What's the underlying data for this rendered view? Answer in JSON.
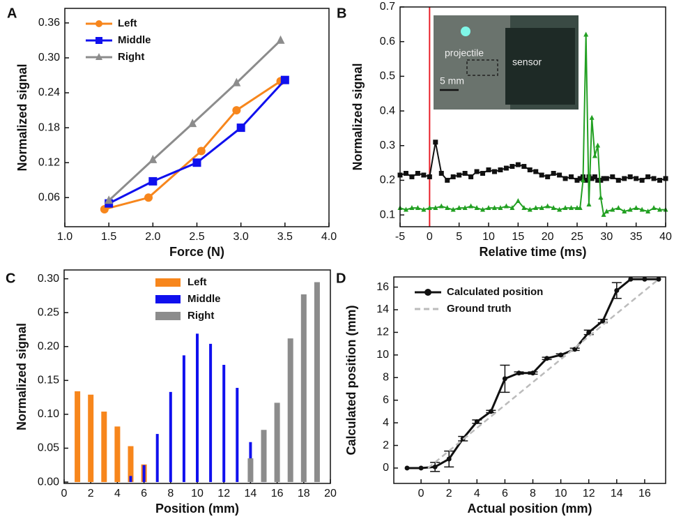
{
  "chart_data": [
    {
      "type": "line",
      "panel": "A",
      "xlabel": "Force (N)",
      "ylabel": "Normalized signal",
      "xlim": [
        1.0,
        4.0
      ],
      "xticks": [
        {
          "value": 1.0,
          "label": "1.0"
        },
        1.5,
        {
          "value": 2.0,
          "label": "2.0"
        },
        2.5,
        {
          "value": 3.0,
          "label": "3.0"
        },
        3.5,
        {
          "value": 4.0,
          "label": "4.0"
        }
      ],
      "ylim": [
        0.01,
        0.385
      ],
      "yticks": [
        0.06,
        0.12,
        0.18,
        0.24,
        {
          "value": 0.3,
          "label": "0.30"
        },
        0.36
      ],
      "legend": "upper left",
      "series": [
        {
          "name": "Left",
          "color": "#f7861c",
          "marker": "circle",
          "x": [
            1.45,
            1.95,
            2.55,
            2.95,
            3.45
          ],
          "values": [
            0.04,
            0.06,
            0.14,
            0.21,
            0.26
          ]
        },
        {
          "name": "Middle",
          "color": "#1010ee",
          "marker": "square",
          "x": [
            1.5,
            2.0,
            2.5,
            3.0,
            3.5
          ],
          "values": [
            0.05,
            0.088,
            0.12,
            0.18,
            0.262
          ]
        },
        {
          "name": "Right",
          "color": "#8c8c8c",
          "marker": "triangle",
          "x": [
            1.5,
            2.0,
            2.45,
            2.95,
            3.45
          ],
          "values": [
            0.055,
            0.125,
            0.187,
            0.257,
            0.33
          ]
        }
      ]
    },
    {
      "type": "line",
      "panel": "B",
      "xlabel": "Relative time (ms)",
      "ylabel": "Normalized signal",
      "xlim": [
        -5,
        40
      ],
      "xticks": [
        -5,
        0,
        5,
        10,
        15,
        20,
        25,
        30,
        35,
        40
      ],
      "ylim": [
        0.066,
        0.7
      ],
      "yticks": [
        0.1,
        0.2,
        0.3,
        0.4,
        0.5,
        0.6,
        0.7
      ],
      "vline": {
        "x": 0,
        "color": "#e8202a"
      },
      "inset_labels": [
        "projectile",
        "sensor",
        "5 mm"
      ],
      "x": [
        -5,
        -4,
        -3,
        -2,
        -1,
        0,
        1,
        2,
        3,
        4,
        5,
        6,
        7,
        8,
        9,
        10,
        11,
        12,
        13,
        14,
        15,
        16,
        17,
        18,
        19,
        20,
        21,
        22,
        23,
        24,
        25,
        25.5,
        26,
        26.5,
        27,
        27.5,
        28,
        28.5,
        29,
        29.5,
        30,
        31,
        32,
        33,
        34,
        35,
        36,
        37,
        38,
        39,
        40
      ],
      "series": [
        {
          "color": "#111111",
          "marker": "square",
          "values": [
            0.215,
            0.22,
            0.21,
            0.22,
            0.215,
            0.21,
            0.31,
            0.22,
            0.2,
            0.21,
            0.215,
            0.22,
            0.21,
            0.225,
            0.22,
            0.23,
            0.225,
            0.23,
            0.235,
            0.24,
            0.245,
            0.24,
            0.23,
            0.225,
            0.215,
            0.21,
            0.22,
            0.215,
            0.205,
            0.21,
            0.2,
            0.205,
            0.21,
            0.2,
            0.21,
            0.205,
            0.21,
            0.2,
            0.2,
            0.205,
            0.205,
            0.21,
            0.2,
            0.205,
            0.21,
            0.205,
            0.2,
            0.21,
            0.205,
            0.2,
            0.205
          ]
        },
        {
          "color": "#22a022",
          "marker": "triangle",
          "values": [
            0.12,
            0.115,
            0.12,
            0.12,
            0.115,
            0.12,
            0.12,
            0.125,
            0.12,
            0.115,
            0.12,
            0.12,
            0.125,
            0.12,
            0.115,
            0.12,
            0.12,
            0.12,
            0.125,
            0.12,
            0.14,
            0.12,
            0.115,
            0.12,
            0.12,
            0.125,
            0.12,
            0.115,
            0.12,
            0.12,
            0.12,
            0.12,
            0.2,
            0.62,
            0.13,
            0.38,
            0.27,
            0.3,
            0.15,
            0.1,
            0.11,
            0.115,
            0.12,
            0.11,
            0.115,
            0.12,
            0.115,
            0.11,
            0.12,
            0.115,
            0.115
          ]
        }
      ]
    },
    {
      "type": "bar",
      "panel": "C",
      "xlabel": "Position (mm)",
      "ylabel": "Normalized signal",
      "xlim": [
        0,
        20
      ],
      "xticks": [
        0,
        2,
        4,
        6,
        8,
        10,
        12,
        14,
        16,
        18,
        20
      ],
      "ylim": [
        -0.002,
        0.313
      ],
      "yticks": [
        {
          "value": 0,
          "label": "0.00"
        },
        0.05,
        {
          "value": 0.1,
          "label": "0.10"
        },
        0.15,
        {
          "value": 0.2,
          "label": "0.20"
        },
        0.25,
        {
          "value": 0.3,
          "label": "0.30"
        }
      ],
      "legend": "upper center",
      "x": [
        1,
        2,
        3,
        4,
        5,
        6,
        7,
        8,
        9,
        10,
        11,
        12,
        13,
        14,
        15,
        16,
        17,
        18,
        19
      ],
      "series": [
        {
          "name": "Left",
          "color": "#f7861c",
          "values": [
            0.134,
            0.129,
            0.104,
            0.082,
            0.053,
            0.026,
            null,
            null,
            null,
            null,
            null,
            null,
            null,
            null,
            null,
            null,
            null,
            null,
            null
          ]
        },
        {
          "name": "Middle",
          "color": "#1010ee",
          "values": [
            null,
            null,
            null,
            null,
            0.009,
            0.025,
            0.071,
            0.133,
            0.187,
            0.219,
            0.204,
            0.173,
            0.139,
            0.059,
            0.02,
            null,
            null,
            null,
            null
          ]
        },
        {
          "name": "Right",
          "color": "#8c8c8c",
          "values": [
            null,
            null,
            null,
            null,
            null,
            null,
            null,
            null,
            null,
            null,
            null,
            null,
            null,
            0.035,
            0.077,
            0.117,
            0.212,
            0.277,
            0.295
          ]
        }
      ]
    },
    {
      "type": "line",
      "panel": "D",
      "xlabel": "Actual position (mm)",
      "ylabel": "Calculated position (mm)",
      "xlim": [
        -1.95,
        17.5
      ],
      "xticks": [
        0,
        2,
        4,
        6,
        8,
        10,
        12,
        14,
        16
      ],
      "ylim": [
        -1.36,
        16.9
      ],
      "yticks": [
        0,
        2,
        4,
        6,
        8,
        10,
        12,
        14,
        16
      ],
      "legend": "upper left",
      "series": [
        {
          "name": "Calculated position",
          "color": "#111111",
          "marker": "circle",
          "x": [
            -1,
            0,
            1,
            2,
            3,
            4,
            5,
            6,
            7,
            8,
            9,
            10,
            11,
            12,
            13,
            14,
            15,
            16,
            17
          ],
          "values": [
            0,
            0,
            0.1,
            0.8,
            2.6,
            4.1,
            5.0,
            7.9,
            8.4,
            8.4,
            9.7,
            10.0,
            10.5,
            12.0,
            13.0,
            15.7,
            16.7,
            16.7,
            16.7
          ],
          "errors": [
            null,
            null,
            0.4,
            0.7,
            0.2,
            0.15,
            0.1,
            1.2,
            0.1,
            0.1,
            0.1,
            0.1,
            0.1,
            0.2,
            0.15,
            0.7,
            null,
            null,
            null
          ]
        },
        {
          "name": "Ground truth",
          "color": "#bbbbbb",
          "dash": true,
          "x": [
            0.5,
            17
          ],
          "values": [
            0,
            16.7
          ]
        }
      ]
    }
  ]
}
